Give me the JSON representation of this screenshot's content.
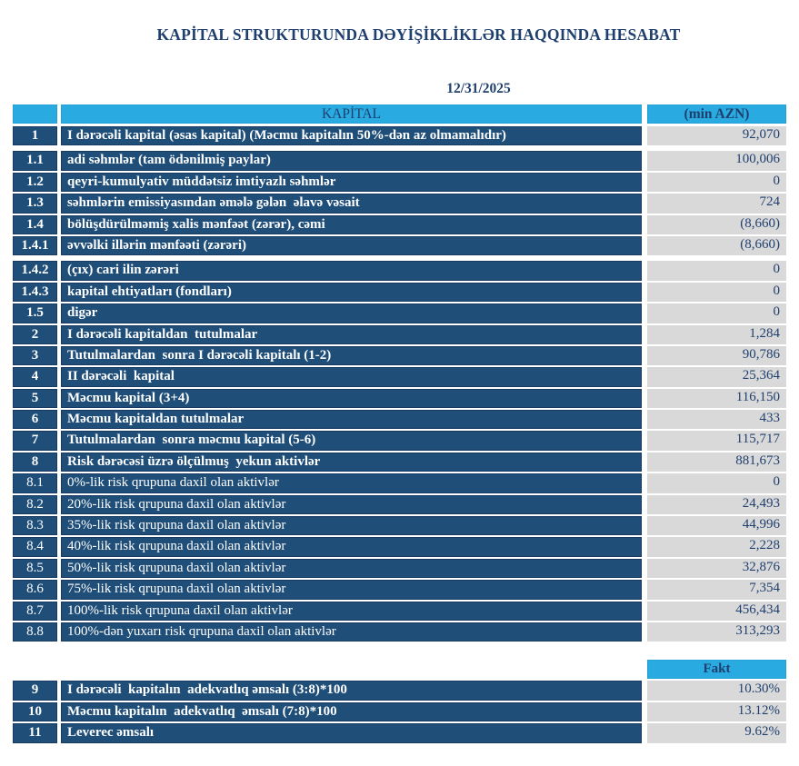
{
  "title": "KAPİTAL STRUKTURUNDA DƏYİŞİKLİKLƏR HAQQINDA HESABAT",
  "date": "12/31/2025",
  "colors": {
    "header_bg": "#29abe2",
    "row_bg": "#1f4e79",
    "value_bg": "#d9d9d9",
    "text_navy": "#1f3f6e",
    "row_text": "#ffffff"
  },
  "table": {
    "header_label": "KAPİTAL",
    "header_unit": "(min AZN)",
    "rows": [
      {
        "no": "1",
        "label": "I dərəcəli kapital (əsas kapital) (Məcmu kapitalın 50%-dən az olmamalıdır)",
        "value": "92,070",
        "bold": true,
        "gap_after": true
      },
      {
        "no": "1.1",
        "label": "adi səhmlər (tam ödənilmiş paylar)",
        "value": "100,006",
        "bold": true
      },
      {
        "no": "1.2",
        "label": "qeyri-kumulyativ müddətsiz imtiyazlı səhmlər",
        "value": "0",
        "bold": true
      },
      {
        "no": "1.3",
        "label": "səhmlərin emissiyasından əmələ gələn  əlavə vəsait",
        "value": "724",
        "bold": true
      },
      {
        "no": "1.4",
        "label": "bölüşdürülməmiş xalis mənfəət (zərər), cəmi",
        "value": "(8,660)",
        "bold": true
      },
      {
        "no": "1.4.1",
        "label": "əvvəlki illərin mənfəəti (zərəri)",
        "value": "(8,660)",
        "bold": true,
        "gap_after": true
      },
      {
        "no": "1.4.2",
        "label": "(çıx) cari ilin zərəri",
        "value": "0",
        "bold": true
      },
      {
        "no": "1.4.3",
        "label": "kapital ehtiyatları (fondları)",
        "value": "0",
        "bold": true
      },
      {
        "no": "1.5",
        "label": "digər",
        "value": "0",
        "bold": true
      },
      {
        "no": "2",
        "label": "I dərəcəli kapitaldan  tutulmalar",
        "value": "1,284",
        "bold": true
      },
      {
        "no": "3",
        "label": "Tutulmalardan  sonra I dərəcəli kapitalı (1-2)",
        "value": "90,786",
        "bold": true
      },
      {
        "no": "4",
        "label": "II dərəcəli  kapital",
        "value": "25,364",
        "bold": true
      },
      {
        "no": "5",
        "label": "Məcmu kapital (3+4)",
        "value": "116,150",
        "bold": true
      },
      {
        "no": "6",
        "label": "Məcmu kapitaldan tutulmalar",
        "value": "433",
        "bold": true
      },
      {
        "no": "7",
        "label": "Tutulmalardan  sonra məcmu kapital (5-6)",
        "value": "115,717",
        "bold": true
      },
      {
        "no": "8",
        "label": "Risk dərəcəsi üzrə ölçülmuş  yekun aktivlər",
        "value": "881,673",
        "bold": true
      },
      {
        "no": "8.1",
        "label": "0%-lik risk qrupuna daxil olan aktivlər",
        "value": "0",
        "bold": false
      },
      {
        "no": "8.2",
        "label": "20%-lik risk qrupuna daxil olan aktivlər",
        "value": "24,493",
        "bold": false
      },
      {
        "no": "8.3",
        "label": "35%-lik risk qrupuna daxil olan aktivlər",
        "value": "44,996",
        "bold": false
      },
      {
        "no": "8.4",
        "label": "40%-lik risk qrupuna daxil olan aktivlər",
        "value": "2,228",
        "bold": false
      },
      {
        "no": "8.5",
        "label": "50%-lik risk qrupuna daxil olan aktivlər",
        "value": "32,876",
        "bold": false
      },
      {
        "no": "8.6",
        "label": "75%-lik risk qrupuna daxil olan aktivlər",
        "value": "7,354",
        "bold": false
      },
      {
        "no": "8.7",
        "label": "100%-lik risk qrupuna daxil olan aktivlər",
        "value": "456,434",
        "bold": false
      },
      {
        "no": "8.8",
        "label": "100%-dən yuxarı risk qrupuna daxil olan aktivlər",
        "value": "313,293",
        "bold": false
      }
    ]
  },
  "ratios": {
    "header": "Fakt",
    "rows": [
      {
        "no": "9",
        "label": "I dərəcəli  kapitalın  adekvatlıq əmsalı (3:8)*100",
        "value": "10.30%",
        "bold": true
      },
      {
        "no": "10",
        "label": "Məcmu kapitalın  adekvatlıq  əmsalı (7:8)*100",
        "value": "13.12%",
        "bold": true
      },
      {
        "no": "11",
        "label": "Leverec əmsalı",
        "value": "9.62%",
        "bold": true
      }
    ]
  }
}
